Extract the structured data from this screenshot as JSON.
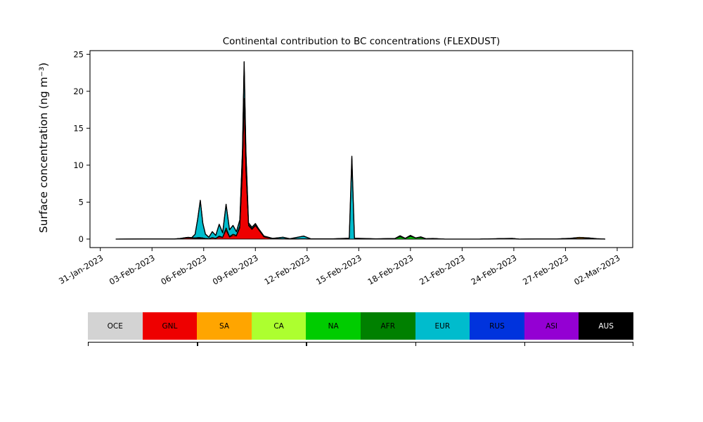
{
  "chart_data": {
    "type": "area",
    "stacked": true,
    "title": "Continental contribution to BC concentrations (FLEXDUST)",
    "xlabel": "",
    "ylabel": "Surface concentration (ng m⁻³)",
    "x_note": "x values are days since 31-Jan-2023",
    "xlim": [
      -0.6,
      30.9
    ],
    "ylim": [
      -1.15,
      25.5
    ],
    "yticks": [
      0,
      5,
      10,
      15,
      20,
      25
    ],
    "xticks": {
      "values": [
        0,
        3,
        6,
        9,
        12,
        15,
        18,
        21,
        24,
        27,
        30
      ],
      "labels": [
        "31-Jan-2023",
        "03-Feb-2023",
        "06-Feb-2023",
        "09-Feb-2023",
        "12-Feb-2023",
        "15-Feb-2023",
        "18-Feb-2023",
        "21-Feb-2023",
        "24-Feb-2023",
        "27-Feb-2023",
        "02-Mar-2023"
      ]
    },
    "x": [
      0.9,
      4.3,
      4.6,
      4.9,
      5.1,
      5.3,
      5.5,
      5.65,
      5.8,
      5.95,
      6.1,
      6.3,
      6.5,
      6.7,
      6.9,
      7.1,
      7.3,
      7.5,
      7.7,
      7.9,
      8.1,
      8.25,
      8.35,
      8.45,
      8.6,
      8.8,
      9.0,
      9.2,
      9.5,
      10.0,
      10.6,
      11.0,
      11.8,
      12.2,
      13.5,
      14.45,
      14.6,
      14.75,
      16.0,
      17.1,
      17.4,
      17.7,
      18.0,
      18.3,
      18.6,
      18.9,
      19.3,
      20.0,
      22.0,
      23.9,
      24.3,
      26.5,
      27.3,
      27.8,
      28.3,
      28.8,
      29.3
    ],
    "series": [
      {
        "name": "OCE",
        "color": "#d3d3d3",
        "values": {}
      },
      {
        "name": "GNL",
        "color": "#ee0000",
        "values": {
          "1": 0.02,
          "2": 0.05,
          "3": 0.12,
          "4": 0.15,
          "5": 0.12,
          "6": 0.1,
          "7": 0.1,
          "8": 0.1,
          "9": 0.1,
          "10": 0.08,
          "11": 0.05,
          "12": 0.15,
          "13": 0.1,
          "14": 0.3,
          "15": 0.2,
          "16": 1.2,
          "17": 0.25,
          "18": 0.5,
          "19": 0.4,
          "20": 1.5,
          "21": 9,
          "22": 18.5,
          "23": 9,
          "24": 1.8,
          "25": 1.3,
          "26": 1.8,
          "27": 1.2,
          "28": 0.3,
          "29": 0.05,
          "30": 0.05,
          "32": 0.05,
          "49": 0.1,
          "52": 0.03,
          "53": 0.05,
          "54": 0.04,
          "55": 0.02
        }
      },
      {
        "name": "SA",
        "color": "#ffa500",
        "values": {
          "2": 0.02,
          "3": 0.05,
          "4": 0.08,
          "5": 0.06,
          "6": 0.05,
          "7": 0.1,
          "8": 0.1,
          "9": 0.05,
          "12": 0.05,
          "14": 0.1,
          "15": 0.05,
          "16": 0.3,
          "17": 0.1,
          "18": 0.15,
          "19": 0.1,
          "20": 0.3,
          "21": 0.5,
          "22": 0.5,
          "23": 0.4,
          "24": 0.15,
          "25": 0.1,
          "26": 0.1,
          "27": 0.05,
          "51": 0.02,
          "52": 0.08,
          "53": 0.14,
          "54": 0.1,
          "55": 0.04
        }
      },
      {
        "name": "CA",
        "color": "#adff2f",
        "values": {
          "53": 0.03,
          "54": 0.02
        }
      },
      {
        "name": "NA",
        "color": "#00cc00",
        "values": {
          "39": 0.08,
          "40": 0.3,
          "41": 0.1,
          "42": 0.35,
          "43": 0.15,
          "44": 0.2,
          "45": 0.05,
          "46": 0.08
        }
      },
      {
        "name": "AFR",
        "color": "#008000",
        "values": {
          "40": 0.15,
          "42": 0.15,
          "44": 0.1
        }
      },
      {
        "name": "EUR",
        "color": "#00bccd",
        "values": {
          "6": 0.5,
          "7": 2.5,
          "8": 5.05,
          "9": 2.0,
          "10": 0.6,
          "11": 0.2,
          "12": 0.8,
          "13": 0.4,
          "14": 1.6,
          "15": 0.6,
          "16": 3.2,
          "17": 0.9,
          "18": 1.2,
          "19": 0.5,
          "20": 0.8,
          "21": 2.5,
          "22": 5.0,
          "23": 2.5,
          "24": 0.25,
          "25": 0.2,
          "26": 0.2,
          "27": 0.1,
          "28": 0.1,
          "29": 0.05,
          "30": 0.2,
          "31": 0.05,
          "32": 0.35,
          "33": 0.05,
          "34": 0.03,
          "35": 0.1,
          "36": 10.2,
          "37": 0.1,
          "38": 0.03
        }
      },
      {
        "name": "RUS",
        "color": "#0033dd",
        "values": {
          "35": 0.02,
          "36": 1.0,
          "37": 0.02
        }
      },
      {
        "name": "ASI",
        "color": "#9400d3",
        "values": {}
      },
      {
        "name": "AUS",
        "color": "#000000",
        "values": {}
      }
    ],
    "legend": [
      {
        "label": "OCE",
        "color": "#d3d3d3",
        "label_color": "#000000"
      },
      {
        "label": "GNL",
        "color": "#ee0000",
        "label_color": "#000000"
      },
      {
        "label": "SA",
        "color": "#ffa500",
        "label_color": "#000000"
      },
      {
        "label": "CA",
        "color": "#adff2f",
        "label_color": "#000000"
      },
      {
        "label": "NA",
        "color": "#00cc00",
        "label_color": "#000000"
      },
      {
        "label": "AFR",
        "color": "#008000",
        "label_color": "#000000"
      },
      {
        "label": "EUR",
        "color": "#00bccd",
        "label_color": "#000000"
      },
      {
        "label": "RUS",
        "color": "#0033dd",
        "label_color": "#000000"
      },
      {
        "label": "ASI",
        "color": "#9400d3",
        "label_color": "#000000"
      },
      {
        "label": "AUS",
        "color": "#000000",
        "label_color": "#ffffff"
      }
    ],
    "outline_color": "#000000",
    "background": "#ffffff",
    "legend_position": "bottom"
  }
}
